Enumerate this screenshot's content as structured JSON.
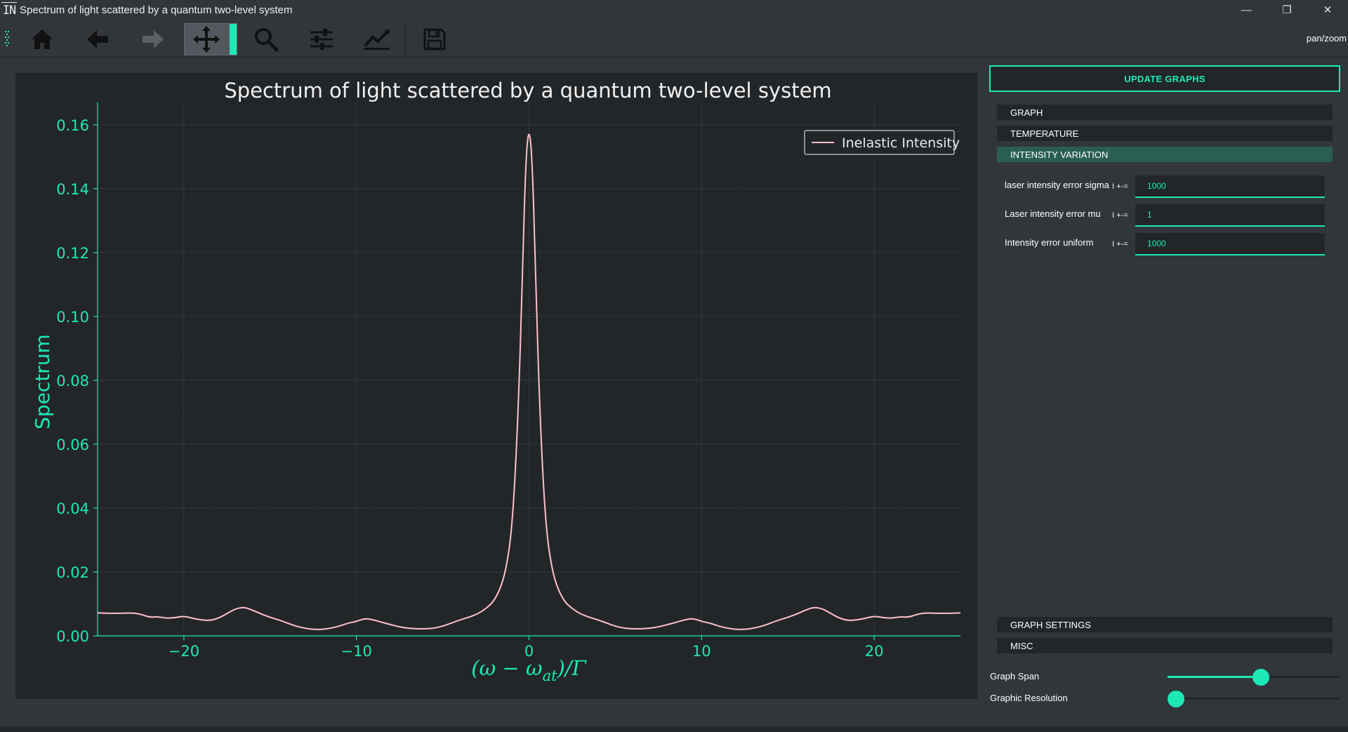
{
  "window": {
    "logo_text": "IN",
    "title": "Spectrum of light scattered by a quantum two-level system",
    "controls": [
      "—",
      "❐",
      "✕"
    ]
  },
  "toolbar": {
    "buttons": [
      {
        "name": "home",
        "icon": "home-icon"
      },
      {
        "name": "back",
        "icon": "arrow-left-icon"
      },
      {
        "name": "forward",
        "icon": "arrow-right-icon",
        "enabled": false
      },
      {
        "name": "pan",
        "icon": "move-icon",
        "active": true
      },
      {
        "name": "zoom",
        "icon": "search-icon"
      },
      {
        "name": "subplots",
        "icon": "sliders-icon"
      },
      {
        "name": "customize",
        "icon": "line-chart-icon"
      },
      {
        "name": "save",
        "icon": "floppy-disk-icon"
      }
    ],
    "mode_label": "pan/zoom"
  },
  "panel": {
    "update_button": "UPDATE GRAPHS",
    "sections": [
      "GRAPH",
      "TEMPERATURE",
      "INTENSITY VARIATION"
    ],
    "active_section": "INTENSITY VARIATION",
    "params": [
      {
        "label": "laser intensity error sigma",
        "symbol": "I +-=",
        "value": "1000"
      },
      {
        "label": "Laser intensity error mu",
        "symbol": "I +-=",
        "value": "1"
      },
      {
        "label": "Intensity error uniform",
        "symbol": "I +-=",
        "value": "1000"
      }
    ],
    "bottom_sections": [
      "GRAPH SETTINGS",
      "MISC"
    ],
    "sliders": [
      {
        "label": "Graph Span",
        "value": 0.5
      },
      {
        "label": "Graphic Resolution",
        "value": 0.0
      }
    ]
  },
  "colors": {
    "accent": "#1de9b6",
    "background": "#31363b",
    "plot_background": "#232629",
    "curve": "#ffc0cb",
    "axis_text": "#1de9b6"
  },
  "chart_data": {
    "type": "line",
    "title": "Spectrum of light scattered by a quantum two-level system",
    "xlabel": "(ω − ω_at)/Γ",
    "xlabel_parts": {
      "pre": "(ω − ω",
      "sub": "at",
      "post": ")/Γ"
    },
    "ylabel": "Spectrum",
    "xlim": [
      -25,
      25
    ],
    "ylim": [
      0,
      0.167
    ],
    "xticks": [
      -20,
      -10,
      0,
      10,
      20
    ],
    "xtick_labels": [
      "−20",
      "−10",
      "0",
      "10",
      "20"
    ],
    "yticks": [
      0.0,
      0.02,
      0.04,
      0.06,
      0.08,
      0.1,
      0.12,
      0.14,
      0.16
    ],
    "ytick_labels": [
      "0.00",
      "0.02",
      "0.04",
      "0.06",
      "0.08",
      "0.10",
      "0.12",
      "0.14",
      "0.16"
    ],
    "grid": true,
    "legend_position": "top-right",
    "series": [
      {
        "name": "Inelastic Intensity",
        "color": "#ffc0cb",
        "x": [
          -25,
          -24,
          -23,
          -22.5,
          -22,
          -21.5,
          -21,
          -20.5,
          -20,
          -19.5,
          -19,
          -18.5,
          -18,
          -17.5,
          -17,
          -16.5,
          -16,
          -15.5,
          -15,
          -14.5,
          -14,
          -13.5,
          -13,
          -12.5,
          -12,
          -11.5,
          -11,
          -10.5,
          -10,
          -9.5,
          -9,
          -8.5,
          -8,
          -7.5,
          -7,
          -6.5,
          -6,
          -5.5,
          -5,
          -4.5,
          -4,
          -3.5,
          -3,
          -2.5,
          -2,
          -1.5,
          -1.2,
          -1,
          -0.8,
          -0.6,
          -0.4,
          -0.2,
          0,
          0.2,
          0.4,
          0.6,
          0.8,
          1,
          1.2,
          1.5,
          2,
          2.5,
          3,
          3.5,
          4,
          4.5,
          5,
          5.5,
          6,
          6.5,
          7,
          7.5,
          8,
          8.5,
          9,
          9.5,
          10,
          10.5,
          11,
          11.5,
          12,
          12.5,
          13,
          13.5,
          14,
          14.5,
          15,
          15.5,
          16,
          16.5,
          17,
          17.5,
          18,
          18.5,
          19,
          19.5,
          20,
          20.5,
          21,
          21.5,
          22,
          22.5,
          23,
          24,
          25
        ],
        "y": [
          0.0072,
          0.007,
          0.0072,
          0.0068,
          0.0058,
          0.006,
          0.0055,
          0.0057,
          0.0062,
          0.0055,
          0.005,
          0.0048,
          0.0055,
          0.007,
          0.0085,
          0.009,
          0.008,
          0.0068,
          0.0058,
          0.005,
          0.004,
          0.003,
          0.0024,
          0.002,
          0.002,
          0.0024,
          0.003,
          0.004,
          0.0045,
          0.0055,
          0.005,
          0.0042,
          0.0035,
          0.0028,
          0.0024,
          0.0022,
          0.0022,
          0.0024,
          0.003,
          0.004,
          0.005,
          0.0058,
          0.0068,
          0.0085,
          0.011,
          0.017,
          0.025,
          0.034,
          0.05,
          0.075,
          0.108,
          0.148,
          0.16,
          0.148,
          0.108,
          0.075,
          0.05,
          0.034,
          0.025,
          0.017,
          0.011,
          0.0085,
          0.0068,
          0.0058,
          0.005,
          0.004,
          0.003,
          0.0024,
          0.0022,
          0.0022,
          0.0024,
          0.0028,
          0.0035,
          0.0042,
          0.005,
          0.0055,
          0.0045,
          0.004,
          0.003,
          0.0024,
          0.002,
          0.002,
          0.0024,
          0.003,
          0.004,
          0.005,
          0.0058,
          0.0068,
          0.008,
          0.009,
          0.0085,
          0.007,
          0.0055,
          0.0048,
          0.005,
          0.0055,
          0.0062,
          0.0057,
          0.0055,
          0.006,
          0.0058,
          0.0068,
          0.0072,
          0.007,
          0.0072
        ]
      }
    ]
  }
}
